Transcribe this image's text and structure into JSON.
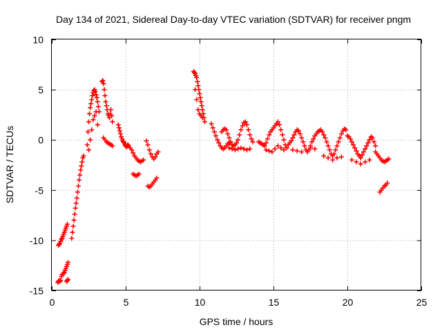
{
  "chart_data": {
    "type": "scatter",
    "title": "Day 134 of 2021, Sidereal Day-to-day VTEC variation (SDTVAR) for receiver pngm",
    "xlabel": "GPS time / hours",
    "ylabel": "SDTVAR / TECUs",
    "xlim": [
      0,
      25
    ],
    "ylim": [
      -15,
      10
    ],
    "x_ticks": [
      "0",
      "5",
      "10",
      "15",
      "20",
      "25"
    ],
    "y_ticks": [
      "10",
      "5",
      "0",
      "-5",
      "-10",
      "-15"
    ],
    "grid": true,
    "marker": "+",
    "marker_color": "#ff0000",
    "series": [
      {
        "name": "SDTVAR",
        "x": [
          0.45,
          0.5,
          0.55,
          0.6,
          0.65,
          0.7,
          0.75,
          0.8,
          0.85,
          0.9,
          0.95,
          1.0,
          1.05,
          0.4,
          0.45,
          0.5,
          0.55,
          0.6,
          0.65,
          0.7,
          0.8,
          0.85,
          0.9,
          0.95,
          1.0,
          1.05,
          1.1,
          1.0,
          1.05,
          1.1,
          1.35,
          1.4,
          1.45,
          1.5,
          1.55,
          1.6,
          1.65,
          1.7,
          1.75,
          1.8,
          1.85,
          1.9,
          1.95,
          2.0,
          2.05,
          2.1,
          2.15,
          2.4,
          2.45,
          2.5,
          2.55,
          2.6,
          2.65,
          2.7,
          2.75,
          2.8,
          2.85,
          2.9,
          2.95,
          3.0,
          3.05,
          3.1,
          3.15,
          3.2,
          2.5,
          2.6,
          2.7,
          2.8,
          2.9,
          3.0,
          3.1,
          3.4,
          3.45,
          3.5,
          3.55,
          3.6,
          3.65,
          3.7,
          3.75,
          3.8,
          3.85,
          3.9,
          3.95,
          4.0,
          4.05,
          4.1,
          3.5,
          3.6,
          3.7,
          3.8,
          3.9,
          4.0,
          4.1,
          4.5,
          4.55,
          4.6,
          4.65,
          4.7,
          4.75,
          4.8,
          4.85,
          4.9,
          4.95,
          5.0,
          5.05,
          5.1,
          5.15,
          5.2,
          5.3,
          5.4,
          5.5,
          5.6,
          5.7,
          5.8,
          5.9,
          6.0,
          6.1,
          6.2,
          5.5,
          5.6,
          5.7,
          5.8,
          5.9,
          6.4,
          6.5,
          6.6,
          6.7,
          6.8,
          6.9,
          7.0,
          7.1,
          7.2,
          6.5,
          6.6,
          6.7,
          6.8,
          6.9,
          7.0,
          7.1,
          9.6,
          9.65,
          9.7,
          9.75,
          9.8,
          9.85,
          9.9,
          9.95,
          10.0,
          10.05,
          10.1,
          10.15,
          10.2,
          10.25,
          10.3,
          10.35,
          9.7,
          9.8,
          9.9,
          10.0,
          10.1,
          10.2,
          10.8,
          10.9,
          11.0,
          11.1,
          11.2,
          11.3,
          11.4,
          11.5,
          11.6,
          11.7,
          11.8,
          11.9,
          12.0,
          11.5,
          11.6,
          11.7,
          11.8,
          11.9,
          12.0,
          12.1,
          12.2,
          12.3,
          12.4,
          12.5,
          12.6,
          12.7,
          12.8,
          12.9,
          13.0,
          13.1,
          13.2,
          13.3,
          13.4,
          13.5,
          13.6,
          12.0,
          12.2,
          12.4,
          12.6,
          12.8,
          13.0,
          13.2,
          13.4,
          14.0,
          14.1,
          14.2,
          14.3,
          14.4,
          14.5,
          14.6,
          14.7,
          14.8,
          14.9,
          15.0,
          15.1,
          15.2,
          15.3,
          15.4,
          15.5,
          15.6,
          15.7,
          15.8,
          15.9,
          14.5,
          14.7,
          14.9,
          15.1,
          15.3,
          15.5,
          15.7,
          16.0,
          16.1,
          16.2,
          16.3,
          16.4,
          16.5,
          16.6,
          16.7,
          16.8,
          16.9,
          17.0,
          17.1,
          17.2,
          17.3,
          17.4,
          17.5,
          17.6,
          17.7,
          17.8,
          17.9,
          16.3,
          16.6,
          16.9,
          17.2,
          17.5,
          17.8,
          18.0,
          18.1,
          18.2,
          18.3,
          18.4,
          18.5,
          18.6,
          18.7,
          18.8,
          18.9,
          19.0,
          19.1,
          19.2,
          19.3,
          19.4,
          19.5,
          19.6,
          19.7,
          19.8,
          19.9,
          18.4,
          18.7,
          19.0,
          19.3,
          19.6,
          20.0,
          20.1,
          20.2,
          20.3,
          20.4,
          20.5,
          20.6,
          20.7,
          20.8,
          20.9,
          21.0,
          21.1,
          21.2,
          21.3,
          21.4,
          21.5,
          21.6,
          21.7,
          21.8,
          21.9,
          20.3,
          20.6,
          20.9,
          21.2,
          21.5,
          21.9,
          22.0,
          22.1,
          22.2,
          22.3,
          22.4,
          22.5,
          22.6,
          22.7,
          22.8,
          22.2,
          22.3,
          22.4,
          22.5,
          22.6,
          22.7
        ],
        "y": [
          -10.5,
          -10.4,
          -10.3,
          -10.1,
          -9.9,
          -9.8,
          -9.6,
          -9.4,
          -9.2,
          -9.0,
          -8.8,
          -8.6,
          -8.4,
          -14.2,
          -14.1,
          -14.0,
          -14.1,
          -14.0,
          -13.6,
          -13.4,
          -13.3,
          -13.2,
          -13.0,
          -12.8,
          -12.6,
          -12.4,
          -12.2,
          -14.1,
          -14.0,
          -13.9,
          -9.8,
          -9.2,
          -8.6,
          -8.0,
          -7.4,
          -6.8,
          -6.3,
          -5.8,
          -5.2,
          -4.6,
          -4.0,
          -3.5,
          -3.0,
          -2.6,
          -2.2,
          -1.8,
          -1.6,
          -0.5,
          0.8,
          1.8,
          2.6,
          3.2,
          3.6,
          4.0,
          4.4,
          4.7,
          4.9,
          5.0,
          4.8,
          4.5,
          4.2,
          3.8,
          3.3,
          2.8,
          -1.0,
          0.0,
          1.0,
          2.0,
          2.4,
          2.8,
          1.5,
          5.8,
          5.9,
          5.6,
          5.0,
          4.4,
          3.8,
          3.4,
          3.0,
          2.6,
          2.4,
          2.2,
          2.6,
          3.0,
          2.4,
          1.8,
          0.2,
          0.0,
          -0.2,
          -0.3,
          -0.4,
          -0.5,
          -0.6,
          1.5,
          1.2,
          0.9,
          0.6,
          0.3,
          0.1,
          -0.1,
          -0.2,
          -0.3,
          -0.5,
          -0.6,
          -0.7,
          -0.6,
          -0.5,
          -0.6,
          -0.8,
          -1.0,
          -1.3,
          -1.6,
          -1.8,
          -2.0,
          -2.1,
          -2.2,
          -2.1,
          -2.0,
          -3.4,
          -3.5,
          -3.6,
          -3.5,
          -3.4,
          -0.1,
          -0.5,
          -1.0,
          -1.4,
          -1.7,
          -1.9,
          -1.7,
          -1.4,
          -1.2,
          -4.6,
          -4.7,
          -4.6,
          -4.4,
          -4.2,
          -4.0,
          -3.8,
          6.8,
          6.7,
          6.6,
          6.4,
          6.2,
          5.8,
          5.4,
          5.0,
          4.6,
          4.2,
          3.8,
          3.4,
          3.0,
          2.6,
          2.2,
          1.8,
          5.0,
          4.0,
          3.0,
          2.6,
          2.4,
          2.2,
          1.6,
          1.2,
          0.8,
          0.4,
          0.0,
          -0.3,
          -0.6,
          -0.8,
          -0.9,
          -0.8,
          -0.6,
          -0.4,
          -0.3,
          0.8,
          1.0,
          1.1,
          1.0,
          0.6,
          0.2,
          -0.2,
          -0.5,
          -0.6,
          -0.5,
          -0.3,
          0.0,
          0.5,
          1.0,
          1.4,
          1.7,
          1.8,
          1.5,
          1.0,
          0.5,
          0.1,
          -0.2,
          -0.8,
          -0.9,
          -1.0,
          -0.9,
          -0.8,
          -0.9,
          -1.0,
          -0.9,
          -0.2,
          -0.3,
          -0.4,
          -0.5,
          -0.6,
          -0.3,
          0.1,
          0.5,
          0.8,
          1.0,
          1.2,
          1.4,
          1.6,
          1.8,
          1.5,
          1.0,
          0.5,
          0.0,
          -0.5,
          -0.8,
          -1.0,
          -1.1,
          -1.2,
          -0.9,
          -0.6,
          -0.8,
          -1.0,
          -0.5,
          -0.3,
          -0.1,
          0.2,
          0.5,
          0.8,
          1.0,
          0.9,
          0.6,
          0.2,
          -0.2,
          -0.6,
          -1.0,
          -1.2,
          -1.0,
          -0.6,
          -0.2,
          0.1,
          0.4,
          0.6,
          -1.0,
          -1.1,
          -1.2,
          -1.0,
          -0.8,
          -0.9,
          0.8,
          0.9,
          1.0,
          0.8,
          0.5,
          0.2,
          -0.2,
          -0.6,
          -1.0,
          -1.4,
          -1.6,
          -1.4,
          -1.0,
          -0.6,
          -0.2,
          0.2,
          0.6,
          0.9,
          1.1,
          1.0,
          -1.6,
          -1.8,
          -2.0,
          -1.8,
          -1.7,
          0.4,
          0.3,
          0.1,
          -0.2,
          -0.5,
          -0.8,
          -1.1,
          -1.4,
          -1.6,
          -1.8,
          -1.5,
          -1.2,
          -0.9,
          -0.6,
          -0.3,
          0.0,
          0.3,
          0.2,
          -0.2,
          -0.6,
          -2.0,
          -2.2,
          -2.4,
          -2.2,
          -2.0,
          -1.2,
          -1.4,
          -1.6,
          -1.8,
          -2.0,
          -2.1,
          -2.2,
          -2.1,
          -2.0,
          -1.9,
          -5.2,
          -5.0,
          -4.8,
          -4.6,
          -4.5,
          -4.3
        ]
      }
    ]
  }
}
